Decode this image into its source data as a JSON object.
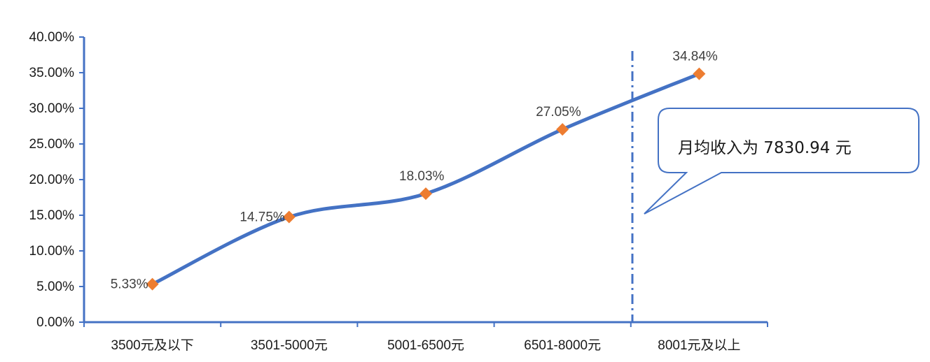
{
  "chart_data": {
    "type": "line",
    "title": "",
    "xlabel": "",
    "ylabel": "",
    "categories": [
      "3500元及以下",
      "3501-5000元",
      "5001-6500元",
      "6501-8000元",
      "8001元及以上"
    ],
    "series": [
      {
        "values": [
          5.33,
          14.75,
          18.03,
          27.05,
          34.84
        ],
        "data_labels": [
          "5.33%",
          "14.75%",
          "18.03%",
          "27.05%",
          "34.84%"
        ]
      }
    ],
    "y_ticks": [
      "0.00%",
      "5.00%",
      "10.00%",
      "15.00%",
      "20.00%",
      "25.00%",
      "30.00%",
      "35.00%",
      "40.00%"
    ],
    "ylim": [
      0,
      40
    ],
    "grid": false,
    "line_color": "#4472c4",
    "marker_color": "#ed7d31",
    "marker": "diamond",
    "annotation": {
      "text": "月均收入为 7830.94 元",
      "reference_value": 7830.94,
      "line_style": "dash-dot"
    }
  }
}
